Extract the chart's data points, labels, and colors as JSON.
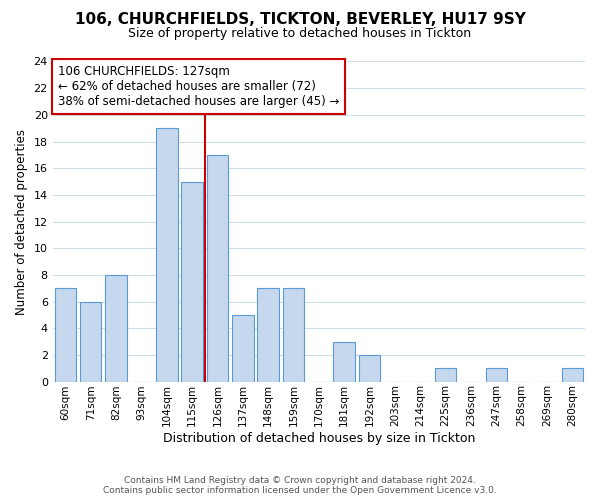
{
  "title": "106, CHURCHFIELDS, TICKTON, BEVERLEY, HU17 9SY",
  "subtitle": "Size of property relative to detached houses in Tickton",
  "xlabel": "Distribution of detached houses by size in Tickton",
  "ylabel": "Number of detached properties",
  "bar_labels": [
    "60sqm",
    "71sqm",
    "82sqm",
    "93sqm",
    "104sqm",
    "115sqm",
    "126sqm",
    "137sqm",
    "148sqm",
    "159sqm",
    "170sqm",
    "181sqm",
    "192sqm",
    "203sqm",
    "214sqm",
    "225sqm",
    "236sqm",
    "247sqm",
    "258sqm",
    "269sqm",
    "280sqm"
  ],
  "bar_values": [
    7,
    6,
    8,
    0,
    19,
    15,
    17,
    5,
    7,
    7,
    0,
    3,
    2,
    0,
    0,
    1,
    0,
    1,
    0,
    0,
    1
  ],
  "bar_color": "#c5d8ed",
  "bar_edge_color": "#5b9bd5",
  "vline_index": 6,
  "vline_color": "#cc0000",
  "annotation_title": "106 CHURCHFIELDS: 127sqm",
  "annotation_line1": "← 62% of detached houses are smaller (72)",
  "annotation_line2": "38% of semi-detached houses are larger (45) →",
  "annotation_box_color": "#ffffff",
  "annotation_box_edge": "#cc0000",
  "ylim": [
    0,
    24
  ],
  "yticks": [
    0,
    2,
    4,
    6,
    8,
    10,
    12,
    14,
    16,
    18,
    20,
    22,
    24
  ],
  "footer1": "Contains HM Land Registry data © Crown copyright and database right 2024.",
  "footer2": "Contains public sector information licensed under the Open Government Licence v3.0.",
  "bg_color": "#ffffff",
  "grid_color": "#d0dce8"
}
